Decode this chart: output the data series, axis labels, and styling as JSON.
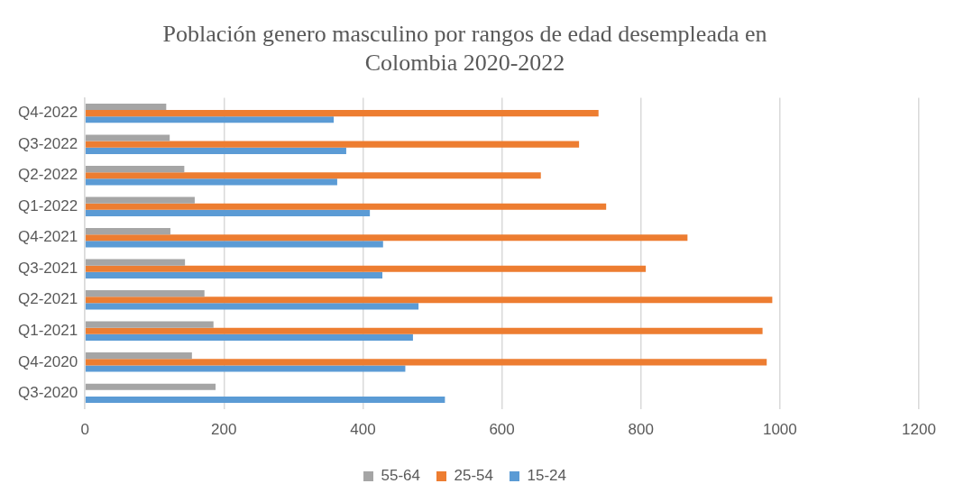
{
  "chart_data": {
    "type": "bar",
    "orientation": "horizontal",
    "title": "Población genero masculino por rangos de edad desempleada en Colombia 2020-2022",
    "categories": [
      "Q4-2022",
      "Q3-2022",
      "Q2-2022",
      "Q1-2022",
      "Q4-2021",
      "Q3-2021",
      "Q2-2021",
      "Q1-2021",
      "Q4-2020",
      "Q3-2020"
    ],
    "series": [
      {
        "name": "55-64",
        "color": "#a5a5a5",
        "values": [
          117,
          122,
          143,
          158,
          123,
          144,
          172,
          185,
          154,
          188
        ]
      },
      {
        "name": "25-54",
        "color": "#ed7d31",
        "values": [
          739,
          711,
          656,
          750,
          867,
          807,
          989,
          975,
          981,
          null
        ]
      },
      {
        "name": "15-24",
        "color": "#5b9bd5",
        "values": [
          358,
          376,
          363,
          410,
          429,
          428,
          480,
          472,
          461,
          518
        ]
      }
    ],
    "xlim": [
      0,
      1200
    ],
    "xticks": [
      0,
      200,
      400,
      600,
      800,
      1000,
      1200
    ],
    "grid": "x",
    "legend": "bottom"
  }
}
